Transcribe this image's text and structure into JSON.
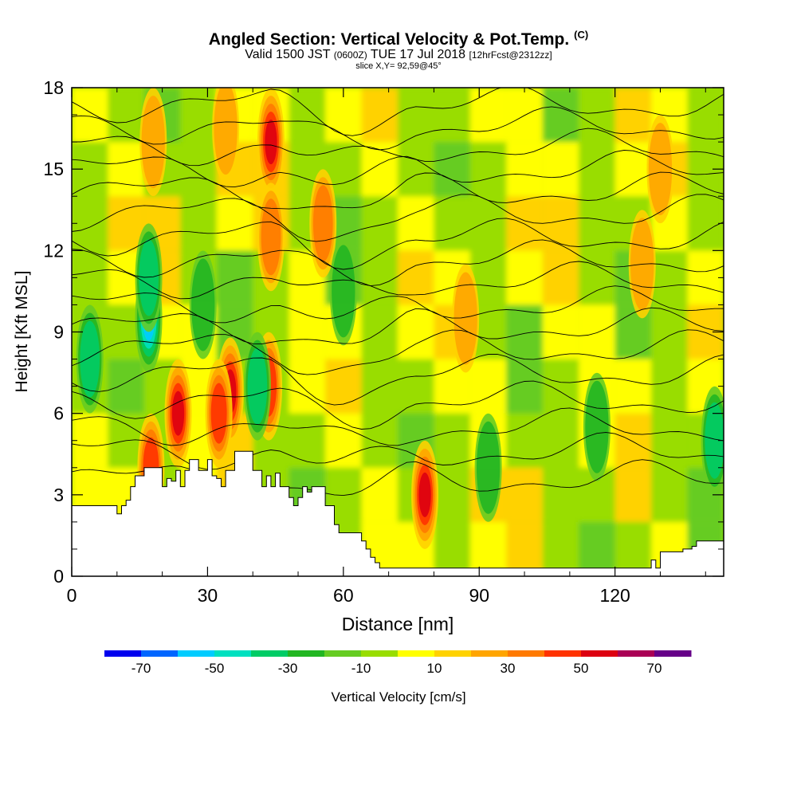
{
  "header": {
    "title": "Angled Section: Vertical Velocity & Pot.Temp.",
    "title_unit": "(C)",
    "valid_prefix": "Valid 1500 JST",
    "valid_zulu": "(0600Z)",
    "valid_date": "TUE 17 Jul 2018",
    "forecast": "[12hrFcst@2312zz]",
    "slice": "slice X,Y= 92,59@45°"
  },
  "chart_data": {
    "type": "heatmap",
    "title": "Angled Section: Vertical Velocity & Pot.Temp.",
    "xlabel": "Distance [nm]",
    "ylabel": "Height [Kft MSL]",
    "xlim": [
      0,
      144
    ],
    "ylim": [
      0,
      18
    ],
    "x_ticks": [
      0,
      30,
      60,
      90,
      120
    ],
    "y_ticks": [
      0,
      3,
      6,
      9,
      12,
      15,
      18
    ],
    "colorbar": {
      "label": "Vertical Velocity [cm/s]",
      "tick_labels": [
        -70,
        -50,
        -30,
        -10,
        10,
        30,
        50,
        70
      ],
      "levels": [
        -80,
        -70,
        -60,
        -50,
        -40,
        -30,
        -20,
        -10,
        0,
        10,
        20,
        30,
        40,
        50,
        60,
        70,
        80
      ],
      "colors": [
        "#0000ee",
        "#0066ff",
        "#00ccff",
        "#00e0c0",
        "#00cc66",
        "#22b622",
        "#66cc22",
        "#99dd00",
        "#ffff00",
        "#ffd200",
        "#ffa500",
        "#ff7a00",
        "#ff3300",
        "#dd0011",
        "#aa0055",
        "#660088"
      ]
    },
    "terrain_kft": {
      "x": [
        0,
        9,
        10,
        11,
        12,
        13,
        14,
        16,
        20,
        21,
        22,
        23,
        24,
        25,
        26,
        28,
        30,
        31,
        32,
        33,
        34,
        36,
        38,
        40,
        42,
        43,
        44,
        45,
        46,
        48,
        49,
        50,
        51,
        52,
        53,
        54,
        56,
        57,
        58,
        59,
        60,
        64,
        65,
        66,
        67,
        68,
        70,
        100,
        110,
        115,
        120,
        127,
        128,
        129,
        130,
        135,
        137,
        138,
        144
      ],
      "y": [
        2.6,
        2.6,
        2.3,
        2.6,
        2.8,
        3.3,
        3.7,
        4.0,
        3.3,
        3.6,
        3.5,
        3.9,
        3.3,
        3.9,
        4.3,
        3.9,
        4.3,
        3.7,
        3.6,
        3.3,
        3.9,
        4.6,
        4.6,
        3.9,
        3.3,
        3.7,
        3.3,
        3.8,
        3.3,
        2.9,
        2.6,
        2.9,
        3.3,
        3.1,
        3.3,
        3.3,
        2.6,
        2.6,
        1.9,
        1.6,
        1.6,
        1.3,
        1.0,
        0.7,
        0.5,
        0.3,
        0.3,
        0.3,
        0.3,
        0.3,
        0.3,
        0.3,
        0.6,
        0.3,
        0.9,
        1.0,
        1.1,
        1.3,
        1.3
      ]
    },
    "updrafts": [
      {
        "x": 44,
        "z": 16.0,
        "value": 55
      },
      {
        "x": 44,
        "z": 12.5,
        "value": 35
      },
      {
        "x": 43.5,
        "z": 7.0,
        "value": 40
      },
      {
        "x": 35,
        "z": 6.8,
        "value": 55
      },
      {
        "x": 32.5,
        "z": 6.0,
        "value": 40
      },
      {
        "x": 23.5,
        "z": 6.0,
        "value": 55
      },
      {
        "x": 17.5,
        "z": 4.0,
        "value": 45
      },
      {
        "x": 18,
        "z": 16.0,
        "value": 25
      },
      {
        "x": 34,
        "z": 16.5,
        "value": 25
      },
      {
        "x": 55.5,
        "z": 13.0,
        "value": 35
      },
      {
        "x": 78,
        "z": 3.0,
        "value": 55
      },
      {
        "x": 126,
        "z": 11.5,
        "value": 25
      },
      {
        "x": 87,
        "z": 9.5,
        "value": 25
      },
      {
        "x": 130,
        "z": 15.0,
        "value": 20
      }
    ],
    "downdrafts": [
      {
        "x": 17,
        "z": 9.5,
        "value": -55
      },
      {
        "x": 17,
        "z": 11.0,
        "value": -35
      },
      {
        "x": 4,
        "z": 8.0,
        "value": -30
      },
      {
        "x": 142,
        "z": 5.0,
        "value": -35
      },
      {
        "x": 41,
        "z": 7.0,
        "value": -30
      },
      {
        "x": 29,
        "z": 10.0,
        "value": -25
      },
      {
        "x": 92,
        "z": 4.0,
        "value": -20
      },
      {
        "x": 116,
        "z": 5.5,
        "value": -20
      },
      {
        "x": 60,
        "z": 10.5,
        "value": -20
      }
    ],
    "isentropes_kft": [
      3.6,
      4.6,
      5.5,
      6.5,
      7.5,
      8.4,
      9.2,
      10.0,
      10.9,
      11.7,
      12.5,
      13.4,
      14.2,
      15.0,
      15.8,
      16.6,
      17.4
    ]
  }
}
